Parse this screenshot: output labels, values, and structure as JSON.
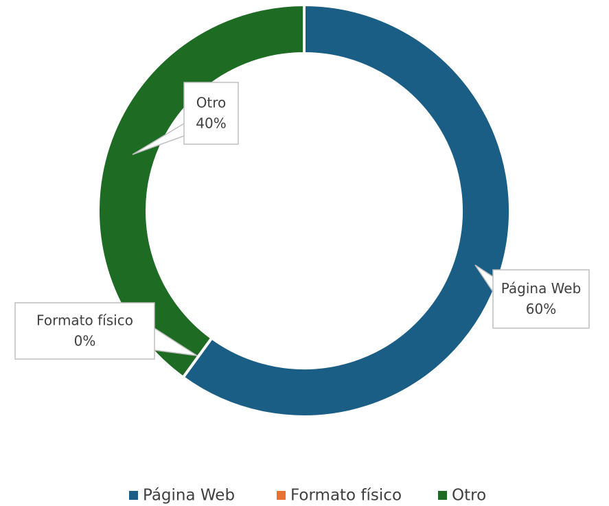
{
  "chart_data": {
    "type": "donut",
    "categories": [
      "Página Web",
      "Formato físico",
      "Otro"
    ],
    "values": [
      60,
      0,
      40
    ],
    "value_labels": [
      "60%",
      "0%",
      "40%"
    ],
    "colors": [
      "#1a5e85",
      "#e97132",
      "#1e6b24"
    ],
    "legend": "bottom"
  }
}
